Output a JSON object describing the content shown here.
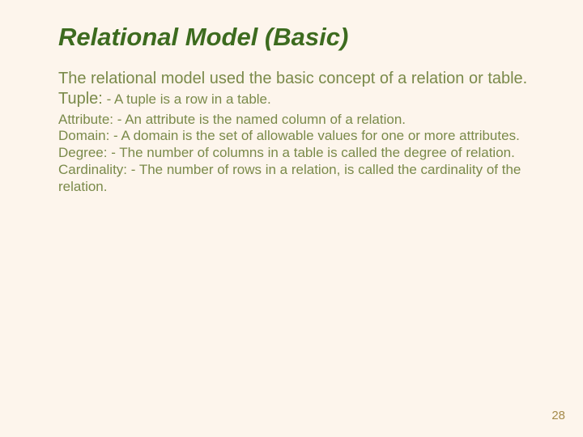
{
  "colors": {
    "background": "#fdf5ec",
    "title": "#3d6b1f",
    "body": "#7a8a4a",
    "pagenum": "#a58a4a"
  },
  "typography": {
    "title_fontsize": 31,
    "title_weight": "bold",
    "title_style": "italic",
    "body_fontsize": 20,
    "def_fontsize": 17,
    "pagenum_fontsize": 15,
    "font_family": "Arial"
  },
  "title": "Relational Model (Basic)",
  "intro": "The relational model used the basic concept of a relation or table.",
  "tuple": {
    "term": "Tuple:",
    "def": " - A tuple is a row in a table."
  },
  "definitions": [
    "Attribute: - An attribute is the named column of a relation.",
    "Domain: - A domain is the set of allowable values for one or more attributes.",
    "Degree: - The number of columns in a table is called the degree of relation.",
    "Cardinality: - The number of rows in a relation, is called the cardinality of the relation."
  ],
  "page_number": "28"
}
